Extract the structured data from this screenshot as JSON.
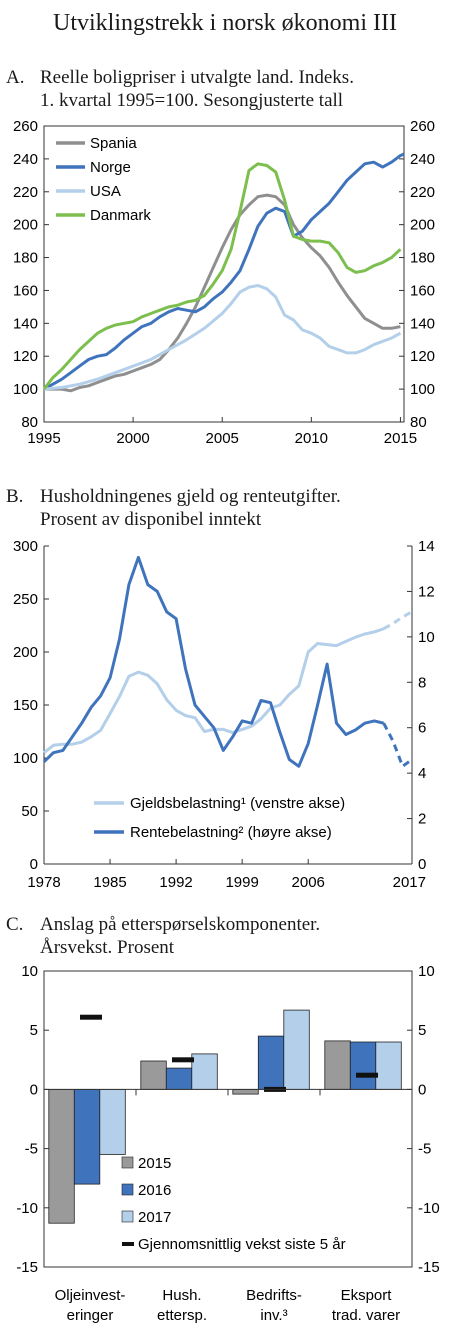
{
  "page": {
    "title": "Utviklingstrekk i norsk økonomi III"
  },
  "panels": {
    "a": {
      "letter": "A.",
      "title_line1": "Reelle boligpriser i utvalgte land. Indeks.",
      "title_line2": "1. kvartal 1995=100. Sesongjusterte tall"
    },
    "b": {
      "letter": "B.",
      "title_line1": "Husholdningenes gjeld og renteutgifter.",
      "title_line2": "Prosent av disponibel inntekt"
    },
    "c": {
      "letter": "C.",
      "title_line1": "Anslag på etterspørselskomponenter.",
      "title_line2": "Årsvekst. Prosent"
    }
  },
  "chart_data": [
    {
      "id": "house-prices",
      "type": "line",
      "xlim": [
        1995,
        2015.2
      ],
      "ylim": [
        80,
        260
      ],
      "yticks": [
        80,
        100,
        120,
        140,
        160,
        180,
        200,
        220,
        240,
        260
      ],
      "xticks": [
        "1995",
        "2000",
        "2005",
        "2010",
        "2015"
      ],
      "xtick_values": [
        1995,
        2000,
        2005,
        2010,
        2015
      ],
      "legend_position": "top-left",
      "series": [
        {
          "name": "Spania",
          "color": "#8f8f8f",
          "points": [
            [
              1995,
              100
            ],
            [
              1995.5,
              100
            ],
            [
              1996,
              100
            ],
            [
              1996.5,
              99
            ],
            [
              1997,
              101
            ],
            [
              1997.5,
              102
            ],
            [
              1998,
              104
            ],
            [
              1998.5,
              106
            ],
            [
              1999,
              108
            ],
            [
              1999.5,
              109
            ],
            [
              2000,
              111
            ],
            [
              2000.5,
              113
            ],
            [
              2001,
              115
            ],
            [
              2001.5,
              118
            ],
            [
              2002,
              124
            ],
            [
              2002.5,
              131
            ],
            [
              2003,
              140
            ],
            [
              2003.5,
              150
            ],
            [
              2004,
              162
            ],
            [
              2004.5,
              174
            ],
            [
              2005,
              186
            ],
            [
              2005.5,
              197
            ],
            [
              2006,
              206
            ],
            [
              2006.5,
              212
            ],
            [
              2007,
              217
            ],
            [
              2007.5,
              218
            ],
            [
              2008,
              217
            ],
            [
              2008.5,
              212
            ],
            [
              2009,
              200
            ],
            [
              2009.5,
              192
            ],
            [
              2010,
              186
            ],
            [
              2010.5,
              181
            ],
            [
              2011,
              174
            ],
            [
              2011.5,
              165
            ],
            [
              2012,
              157
            ],
            [
              2012.5,
              150
            ],
            [
              2013,
              143
            ],
            [
              2013.5,
              140
            ],
            [
              2014,
              137
            ],
            [
              2014.5,
              137
            ],
            [
              2015,
              138
            ]
          ]
        },
        {
          "name": "Norge",
          "color": "#3f74bd",
          "points": [
            [
              1995,
              100
            ],
            [
              1995.5,
              103
            ],
            [
              1996,
              106
            ],
            [
              1996.5,
              110
            ],
            [
              1997,
              114
            ],
            [
              1997.5,
              118
            ],
            [
              1998,
              120
            ],
            [
              1998.5,
              121
            ],
            [
              1999,
              125
            ],
            [
              1999.5,
              130
            ],
            [
              2000,
              134
            ],
            [
              2000.5,
              138
            ],
            [
              2001,
              140
            ],
            [
              2001.5,
              144
            ],
            [
              2002,
              147
            ],
            [
              2002.5,
              149
            ],
            [
              2003,
              148
            ],
            [
              2003.5,
              147
            ],
            [
              2004,
              150
            ],
            [
              2004.5,
              155
            ],
            [
              2005,
              159
            ],
            [
              2005.5,
              165
            ],
            [
              2006,
              172
            ],
            [
              2006.5,
              185
            ],
            [
              2007,
              199
            ],
            [
              2007.5,
              207
            ],
            [
              2008,
              210
            ],
            [
              2008.5,
              208
            ],
            [
              2009,
              193
            ],
            [
              2009.5,
              196
            ],
            [
              2010,
              203
            ],
            [
              2010.5,
              208
            ],
            [
              2011,
              213
            ],
            [
              2011.5,
              220
            ],
            [
              2012,
              227
            ],
            [
              2012.5,
              232
            ],
            [
              2013,
              237
            ],
            [
              2013.5,
              238
            ],
            [
              2014,
              235
            ],
            [
              2014.5,
              238
            ],
            [
              2015,
              242
            ],
            [
              2015.2,
              243
            ]
          ]
        },
        {
          "name": "USA",
          "color": "#b3cfe9",
          "points": [
            [
              1995,
              100
            ],
            [
              1996,
              101
            ],
            [
              1997,
              103
            ],
            [
              1998,
              106
            ],
            [
              1999,
              110
            ],
            [
              2000,
              114
            ],
            [
              2001,
              118
            ],
            [
              2002,
              124
            ],
            [
              2003,
              130
            ],
            [
              2004,
              137
            ],
            [
              2005,
              146
            ],
            [
              2005.5,
              152
            ],
            [
              2006,
              159
            ],
            [
              2006.5,
              162
            ],
            [
              2007,
              163
            ],
            [
              2007.5,
              161
            ],
            [
              2008,
              156
            ],
            [
              2008.5,
              145
            ],
            [
              2009,
              142
            ],
            [
              2009.5,
              136
            ],
            [
              2010,
              134
            ],
            [
              2010.5,
              131
            ],
            [
              2011,
              126
            ],
            [
              2011.5,
              124
            ],
            [
              2012,
              122
            ],
            [
              2012.5,
              122
            ],
            [
              2013,
              124
            ],
            [
              2013.5,
              127
            ],
            [
              2014,
              129
            ],
            [
              2014.5,
              131
            ],
            [
              2015,
              134
            ]
          ]
        },
        {
          "name": "Danmark",
          "color": "#7dbf4e",
          "points": [
            [
              1995,
              100
            ],
            [
              1995.5,
              107
            ],
            [
              1996,
              112
            ],
            [
              1996.5,
              118
            ],
            [
              1997,
              124
            ],
            [
              1997.5,
              129
            ],
            [
              1998,
              134
            ],
            [
              1998.5,
              137
            ],
            [
              1999,
              139
            ],
            [
              1999.5,
              140
            ],
            [
              2000,
              141
            ],
            [
              2000.5,
              144
            ],
            [
              2001,
              146
            ],
            [
              2001.5,
              148
            ],
            [
              2002,
              150
            ],
            [
              2002.5,
              151
            ],
            [
              2003,
              153
            ],
            [
              2003.5,
              154
            ],
            [
              2004,
              157
            ],
            [
              2004.5,
              164
            ],
            [
              2005,
              172
            ],
            [
              2005.5,
              185
            ],
            [
              2006,
              208
            ],
            [
              2006.5,
              233
            ],
            [
              2007,
              237
            ],
            [
              2007.5,
              236
            ],
            [
              2008,
              232
            ],
            [
              2008.5,
              215
            ],
            [
              2009,
              193
            ],
            [
              2009.5,
              191
            ],
            [
              2010,
              190
            ],
            [
              2010.5,
              190
            ],
            [
              2011,
              189
            ],
            [
              2011.5,
              183
            ],
            [
              2012,
              174
            ],
            [
              2012.5,
              171
            ],
            [
              2013,
              172
            ],
            [
              2013.5,
              175
            ],
            [
              2014,
              177
            ],
            [
              2014.5,
              180
            ],
            [
              2015,
              185
            ]
          ]
        }
      ]
    },
    {
      "id": "debt-interest",
      "type": "line",
      "xlim": [
        1978,
        2017
      ],
      "ylim_left": [
        0,
        300
      ],
      "ylim_right": [
        0,
        14
      ],
      "yticks_left": [
        0,
        50,
        100,
        150,
        200,
        250,
        300
      ],
      "yticks_right": [
        0,
        2,
        4,
        6,
        8,
        10,
        12,
        14
      ],
      "xticks": [
        "1978",
        "1985",
        "1992",
        "1999",
        "2006",
        "2017"
      ],
      "xtick_values": [
        1978,
        1985,
        1992,
        1999,
        2006,
        2017
      ],
      "forecast_from": 2014,
      "series": [
        {
          "name": "Gjeldsbelastning¹ (venstre akse)",
          "axis": "left",
          "color": "#b3cfe9",
          "points": [
            [
              1978,
              105
            ],
            [
              1979,
              112
            ],
            [
              1980,
              113
            ],
            [
              1981,
              113
            ],
            [
              1982,
              115
            ],
            [
              1983,
              120
            ],
            [
              1984,
              126
            ],
            [
              1985,
              142
            ],
            [
              1986,
              158
            ],
            [
              1987,
              177
            ],
            [
              1988,
              181
            ],
            [
              1989,
              178
            ],
            [
              1990,
              170
            ],
            [
              1991,
              155
            ],
            [
              1992,
              145
            ],
            [
              1993,
              140
            ],
            [
              1994,
              138
            ],
            [
              1995,
              125
            ],
            [
              1996,
              127
            ],
            [
              1997,
              127
            ],
            [
              1998,
              124
            ],
            [
              1999,
              127
            ],
            [
              2000,
              130
            ],
            [
              2001,
              137
            ],
            [
              2002,
              147
            ],
            [
              2003,
              150
            ],
            [
              2004,
              160
            ],
            [
              2005,
              168
            ],
            [
              2006,
              200
            ],
            [
              2007,
              208
            ],
            [
              2008,
              207
            ],
            [
              2009,
              206
            ],
            [
              2010,
              210
            ],
            [
              2011,
              214
            ],
            [
              2012,
              217
            ],
            [
              2013,
              219
            ],
            [
              2014,
              222
            ],
            [
              2015,
              227
            ],
            [
              2016,
              233
            ],
            [
              2017,
              238
            ]
          ]
        },
        {
          "name": "Rentebelastning² (høyre akse)",
          "axis": "right",
          "color": "#3f74bd",
          "points": [
            [
              1978,
              4.5
            ],
            [
              1979,
              4.9
            ],
            [
              1980,
              5.0
            ],
            [
              1981,
              5.6
            ],
            [
              1982,
              6.2
            ],
            [
              1983,
              6.9
            ],
            [
              1984,
              7.4
            ],
            [
              1985,
              8.2
            ],
            [
              1986,
              9.9
            ],
            [
              1987,
              12.3
            ],
            [
              1988,
              13.5
            ],
            [
              1989,
              12.3
            ],
            [
              1990,
              12.0
            ],
            [
              1991,
              11.1
            ],
            [
              1992,
              10.8
            ],
            [
              1993,
              8.6
            ],
            [
              1994,
              7.0
            ],
            [
              1995,
              6.5
            ],
            [
              1996,
              6.0
            ],
            [
              1997,
              5.0
            ],
            [
              1998,
              5.6
            ],
            [
              1999,
              6.3
            ],
            [
              2000,
              6.2
            ],
            [
              2001,
              7.2
            ],
            [
              2002,
              7.1
            ],
            [
              2003,
              5.8
            ],
            [
              2004,
              4.6
            ],
            [
              2005,
              4.3
            ],
            [
              2006,
              5.3
            ],
            [
              2007,
              7.0
            ],
            [
              2008,
              8.8
            ],
            [
              2009,
              6.2
            ],
            [
              2010,
              5.7
            ],
            [
              2011,
              5.9
            ],
            [
              2012,
              6.2
            ],
            [
              2013,
              6.3
            ],
            [
              2014,
              6.2
            ],
            [
              2015,
              5.4
            ],
            [
              2016,
              4.3
            ],
            [
              2017,
              4.6
            ]
          ]
        }
      ]
    },
    {
      "id": "demand-growth",
      "type": "bar",
      "ylim": [
        -15,
        10
      ],
      "yticks": [
        -15,
        -10,
        -5,
        0,
        5,
        10
      ],
      "categories": [
        [
          "Oljeinvest-",
          "eringer"
        ],
        [
          "Hush.",
          "ettersp."
        ],
        [
          "Bedrifts-",
          "inv.³"
        ],
        [
          "Eksport",
          "trad. varer"
        ]
      ],
      "legend_position": "bottom-left",
      "series": [
        {
          "name": "2015",
          "color": "#9a9a9a",
          "values": [
            -11.3,
            2.4,
            -0.4,
            4.1
          ]
        },
        {
          "name": "2016",
          "color": "#3f74bd",
          "values": [
            -8.0,
            1.8,
            4.5,
            4.0
          ]
        },
        {
          "name": "2017",
          "color": "#b3cfe9",
          "values": [
            -5.5,
            3.0,
            6.7,
            4.0
          ]
        }
      ],
      "markers": {
        "name": "Gjennomsnittlig vekst siste 5 år",
        "values": [
          6.1,
          2.5,
          0.0,
          1.2
        ]
      }
    }
  ]
}
